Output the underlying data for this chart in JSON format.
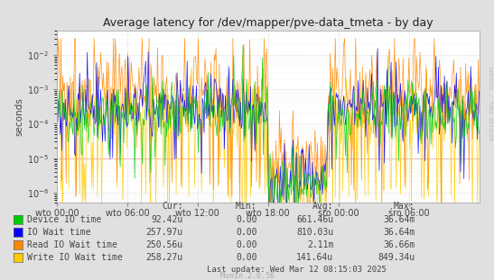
{
  "title": "Average latency for /dev/mapper/pve-data_tmeta - by day",
  "ylabel": "seconds",
  "right_label": "RRDTOOL / TOBI OETIKER",
  "x_ticks": [
    "wto 00:00",
    "wto 06:00",
    "wto 12:00",
    "wto 18:00",
    "śro 00:00",
    "śro 06:00"
  ],
  "y_lim": [
    5e-07,
    0.05
  ],
  "background_color": "#e0e0e0",
  "plot_bg_color": "#ffffff",
  "grid_color": "#cccccc",
  "legend": [
    {
      "label": "Device IO time",
      "color": "#00cc00",
      "cur": "92.42u",
      "min": "0.00",
      "avg": "661.46u",
      "max": "36.64m"
    },
    {
      "label": "IO Wait time",
      "color": "#0000ff",
      "cur": "257.97u",
      "min": "0.00",
      "avg": "810.03u",
      "max": "36.64m"
    },
    {
      "label": "Read IO Wait time",
      "color": "#ff8800",
      "cur": "250.56u",
      "min": "0.00",
      "avg": "2.11m",
      "max": "36.66m"
    },
    {
      "label": "Write IO Wait time",
      "color": "#ffcc00",
      "cur": "258.27u",
      "min": "0.00",
      "avg": "141.64u",
      "max": "849.34u"
    }
  ],
  "last_update": "Last update: Wed Mar 12 08:15:03 2025",
  "munin_version": "Munin 2.0.56",
  "n_points": 500,
  "seed": 42
}
